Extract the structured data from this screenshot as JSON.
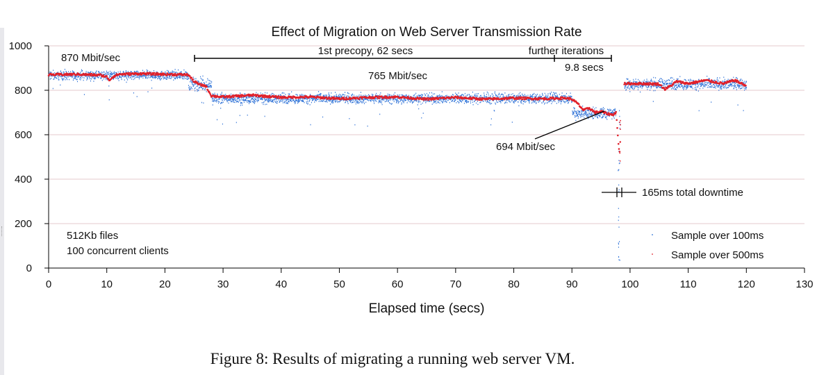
{
  "caption": "Figure 8: Results of migrating a running web server VM.",
  "colors": {
    "sample_100ms": "#2a6fd6",
    "sample_500ms": "#e0202a",
    "grid": "#e4c8cc",
    "axis": "#000000"
  },
  "chart_data": {
    "type": "scatter",
    "title": "Effect of Migration on Web Server Transmission Rate",
    "xlabel": "Elapsed time (secs)",
    "ylabel": "",
    "xlim": [
      0,
      130
    ],
    "ylim": [
      0,
      1000
    ],
    "xticks": [
      0,
      10,
      20,
      30,
      40,
      50,
      60,
      70,
      80,
      90,
      100,
      110,
      120,
      130
    ],
    "yticks": [
      0,
      200,
      400,
      600,
      800,
      1000
    ],
    "grid": "horizontal",
    "legend_position": "bottom-right",
    "series": [
      {
        "name": "Sample over 100ms",
        "color": "#2a6fd6",
        "marker": "dot",
        "segments": [
          {
            "x_start": 0,
            "x_end": 24,
            "mean": 870,
            "spread": 22
          },
          {
            "x_start": 24,
            "x_end": 28,
            "mean": 830,
            "spread": 30
          },
          {
            "x_start": 28,
            "x_end": 90,
            "mean": 765,
            "spread": 25
          },
          {
            "x_start": 90,
            "x_end": 97.5,
            "mean": 700,
            "spread": 30
          },
          {
            "x_start": 99,
            "x_end": 120,
            "mean": 830,
            "spread": 28
          }
        ]
      },
      {
        "name": "Sample over 500ms",
        "color": "#e0202a",
        "marker": "line",
        "points": [
          [
            0,
            870
          ],
          [
            5,
            872
          ],
          [
            9,
            868
          ],
          [
            10,
            860
          ],
          [
            10.5,
            845
          ],
          [
            11,
            860
          ],
          [
            12,
            872
          ],
          [
            16,
            875
          ],
          [
            20,
            872
          ],
          [
            24,
            870
          ],
          [
            25,
            840
          ],
          [
            26,
            825
          ],
          [
            27,
            820
          ],
          [
            28,
            775
          ],
          [
            30,
            770
          ],
          [
            35,
            778
          ],
          [
            40,
            768
          ],
          [
            45,
            770
          ],
          [
            50,
            762
          ],
          [
            55,
            768
          ],
          [
            60,
            770
          ],
          [
            65,
            760
          ],
          [
            70,
            768
          ],
          [
            75,
            760
          ],
          [
            80,
            765
          ],
          [
            85,
            762
          ],
          [
            89,
            765
          ],
          [
            90,
            760
          ],
          [
            91,
            740
          ],
          [
            92,
            710
          ],
          [
            93,
            720
          ],
          [
            94,
            700
          ],
          [
            95,
            705
          ],
          [
            96,
            695
          ],
          [
            97,
            690
          ],
          [
            97.6,
            700
          ],
          [
            98,
            560
          ],
          [
            98.3,
            500
          ],
          [
            99,
            830
          ],
          [
            102,
            830
          ],
          [
            105,
            828
          ],
          [
            106,
            805
          ],
          [
            107,
            820
          ],
          [
            108,
            840
          ],
          [
            110,
            830
          ],
          [
            113,
            845
          ],
          [
            116,
            830
          ],
          [
            118,
            845
          ],
          [
            120,
            820
          ]
        ]
      }
    ],
    "annotations": {
      "rate_870": "870 Mbit/sec",
      "rate_765": "765 Mbit/sec",
      "rate_694": "694 Mbit/sec",
      "precopy": "1st precopy, 62 secs",
      "further_iterations": "further iterations",
      "iter_time": "9.8 secs",
      "downtime": "165ms total downtime",
      "files": "512Kb files",
      "clients": "100 concurrent clients"
    }
  }
}
